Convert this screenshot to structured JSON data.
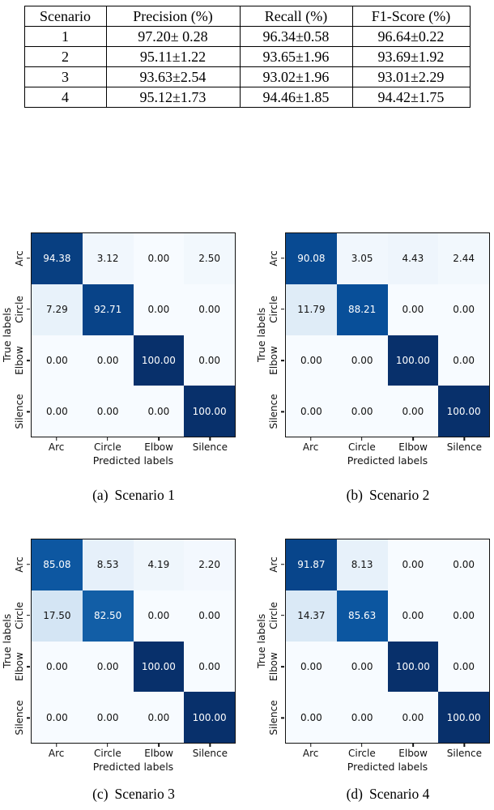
{
  "table": {
    "columns": [
      "Scenario",
      "Precision (%)",
      "Recall (%)",
      "F1-Score (%)"
    ],
    "rows": [
      [
        "1",
        "97.20± 0.28",
        "96.34±0.58",
        "96.64±0.22"
      ],
      [
        "2",
        "95.11±1.22",
        "93.65±1.96",
        "93.69±1.92"
      ],
      [
        "3",
        "93.63±2.54",
        "93.02±1.96",
        "93.01±2.29"
      ],
      [
        "4",
        "95.12±1.73",
        "94.46±1.85",
        "94.42±1.75"
      ]
    ]
  },
  "chart_data": [
    {
      "type": "heatmap",
      "caption_label": "(a)",
      "caption_title": "Scenario 1",
      "xlabel": "Predicted labels",
      "ylabel": "True labels",
      "x_categories": [
        "Arc",
        "Circle",
        "Elbow",
        "Silence"
      ],
      "y_categories": [
        "Arc",
        "Circle",
        "Elbow",
        "Silence"
      ],
      "values": [
        [
          94.38,
          3.12,
          0.0,
          2.5
        ],
        [
          7.29,
          92.71,
          0.0,
          0.0
        ],
        [
          0.0,
          0.0,
          100.0,
          0.0
        ],
        [
          0.0,
          0.0,
          0.0,
          100.0
        ]
      ],
      "value_range": [
        0,
        100
      ],
      "colormap": "Blues",
      "grid": false,
      "legend": "none"
    },
    {
      "type": "heatmap",
      "caption_label": "(b)",
      "caption_title": "Scenario 2",
      "xlabel": "Predicted labels",
      "ylabel": "True labels",
      "x_categories": [
        "Arc",
        "Circle",
        "Elbow",
        "Silence"
      ],
      "y_categories": [
        "Arc",
        "Circle",
        "Elbow",
        "Silence"
      ],
      "values": [
        [
          90.08,
          3.05,
          4.43,
          2.44
        ],
        [
          11.79,
          88.21,
          0.0,
          0.0
        ],
        [
          0.0,
          0.0,
          100.0,
          0.0
        ],
        [
          0.0,
          0.0,
          0.0,
          100.0
        ]
      ],
      "value_range": [
        0,
        100
      ],
      "colormap": "Blues",
      "grid": false,
      "legend": "none"
    },
    {
      "type": "heatmap",
      "caption_label": "(c)",
      "caption_title": "Scenario 3",
      "xlabel": "Predicted labels",
      "ylabel": "True labels",
      "x_categories": [
        "Arc",
        "Circle",
        "Elbow",
        "Silence"
      ],
      "y_categories": [
        "Arc",
        "Circle",
        "Elbow",
        "Silence"
      ],
      "values": [
        [
          85.08,
          8.53,
          4.19,
          2.2
        ],
        [
          17.5,
          82.5,
          0.0,
          0.0
        ],
        [
          0.0,
          0.0,
          100.0,
          0.0
        ],
        [
          0.0,
          0.0,
          0.0,
          100.0
        ]
      ],
      "value_range": [
        0,
        100
      ],
      "colormap": "Blues",
      "grid": false,
      "legend": "none"
    },
    {
      "type": "heatmap",
      "caption_label": "(d)",
      "caption_title": "Scenario 4",
      "xlabel": "Predicted labels",
      "ylabel": "True labels",
      "x_categories": [
        "Arc",
        "Circle",
        "Elbow",
        "Silence"
      ],
      "y_categories": [
        "Arc",
        "Circle",
        "Elbow",
        "Silence"
      ],
      "values": [
        [
          91.87,
          8.13,
          0.0,
          0.0
        ],
        [
          14.37,
          85.63,
          0.0,
          0.0
        ],
        [
          0.0,
          0.0,
          100.0,
          0.0
        ],
        [
          0.0,
          0.0,
          0.0,
          100.0
        ]
      ],
      "value_range": [
        0,
        100
      ],
      "colormap": "Blues",
      "grid": false,
      "legend": "none"
    }
  ],
  "colors": {
    "colormap_stops": [
      "#f7fbff",
      "#deebf7",
      "#c6dbef",
      "#9ecae1",
      "#6baed6",
      "#4292c6",
      "#2171b5",
      "#08519c",
      "#08306b"
    ],
    "cell_text_light": "#ffffff",
    "cell_text_dark": "#111111",
    "spine": "#111111",
    "page_background": "#ffffff"
  }
}
